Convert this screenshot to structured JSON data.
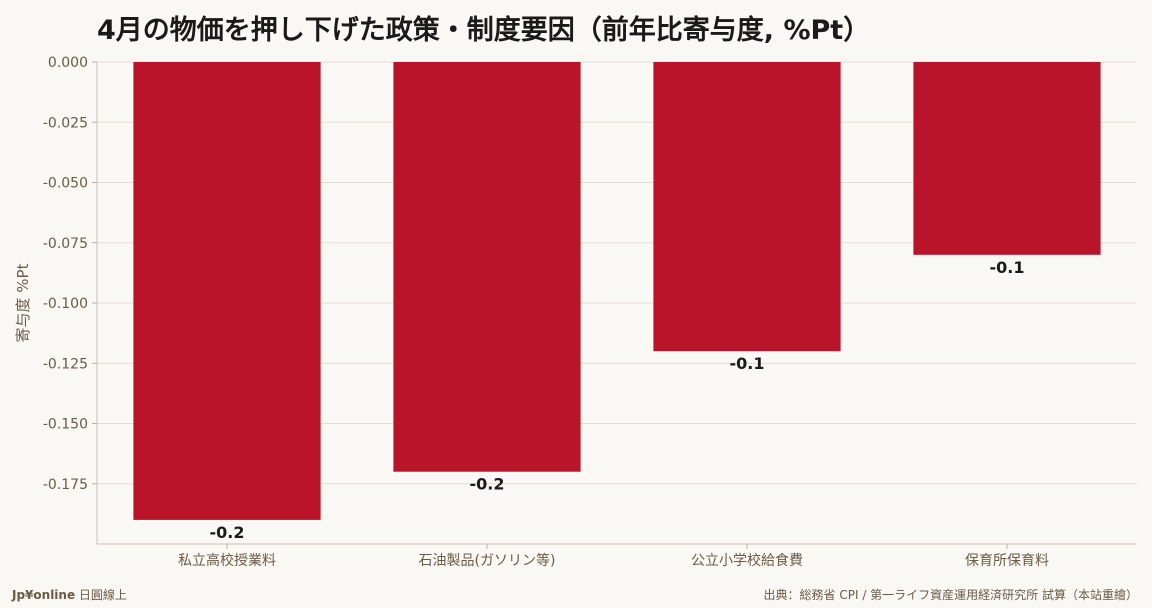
{
  "chart_data": {
    "type": "bar",
    "title": "4月の物価を押し下げた政策・制度要因（前年比寄与度, %Pt）",
    "ylabel": "寄与度 %Pt",
    "xlabel": "",
    "categories": [
      "私立高校授業料",
      "石油製品(ガソリン等)",
      "公立小学校給食費",
      "保育所保育料"
    ],
    "values": [
      -0.19,
      -0.17,
      -0.12,
      -0.08
    ],
    "data_labels": [
      "-0.2",
      "-0.2",
      "-0.1",
      "-0.1"
    ],
    "ylim": [
      -0.2,
      0.0
    ],
    "yticks": [
      0.0,
      -0.025,
      -0.05,
      -0.075,
      -0.1,
      -0.125,
      -0.15,
      -0.175
    ],
    "ytick_labels": [
      "0.000",
      "-0.025",
      "-0.050",
      "-0.075",
      "-0.100",
      "-0.125",
      "-0.150",
      "-0.175"
    ],
    "grid": true,
    "bar_color": "#b91429"
  },
  "footer": {
    "brand_bold": "Jp¥online",
    "brand_rest": " 日圓線上",
    "source": "出典：総務省 CPI / 第一ライフ資産運用経済研究所 試算（本站重繪）"
  }
}
